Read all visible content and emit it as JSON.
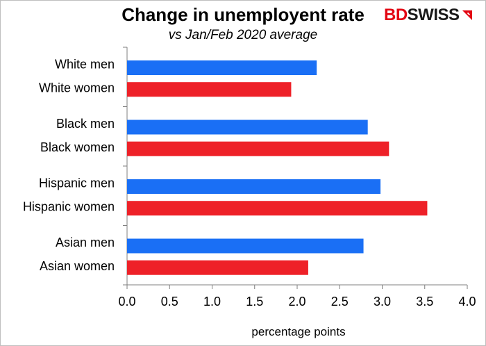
{
  "title": "Change in unemployent rate",
  "subtitle": "vs Jan/Feb 2020 average",
  "logo": {
    "brand_part1": "BD",
    "brand_part2": "SWISS",
    "icon": "swiss-cross-flag-icon"
  },
  "chart_data": {
    "type": "bar",
    "orientation": "horizontal",
    "title": "Change in unemployent rate",
    "subtitle": "vs Jan/Feb 2020 average",
    "xlabel": "percentage points",
    "ylabel": "",
    "xlim": [
      0,
      4.0
    ],
    "xticks": [
      "0.0",
      "0.5",
      "1.0",
      "1.5",
      "2.0",
      "2.5",
      "3.0",
      "3.5",
      "4.0"
    ],
    "grid": false,
    "legend": "none",
    "categories": [
      "White men",
      "White women",
      "Black men",
      "Black women",
      "Hispanic men",
      "Hispanic women",
      "Asian men",
      "Asian women"
    ],
    "values": [
      2.23,
      1.93,
      2.83,
      3.08,
      2.98,
      3.53,
      2.78,
      2.13
    ],
    "bar_colors": [
      "#1a6ff5",
      "#ee2128",
      "#1a6ff5",
      "#ee2128",
      "#1a6ff5",
      "#ee2128",
      "#1a6ff5",
      "#ee2128"
    ]
  }
}
